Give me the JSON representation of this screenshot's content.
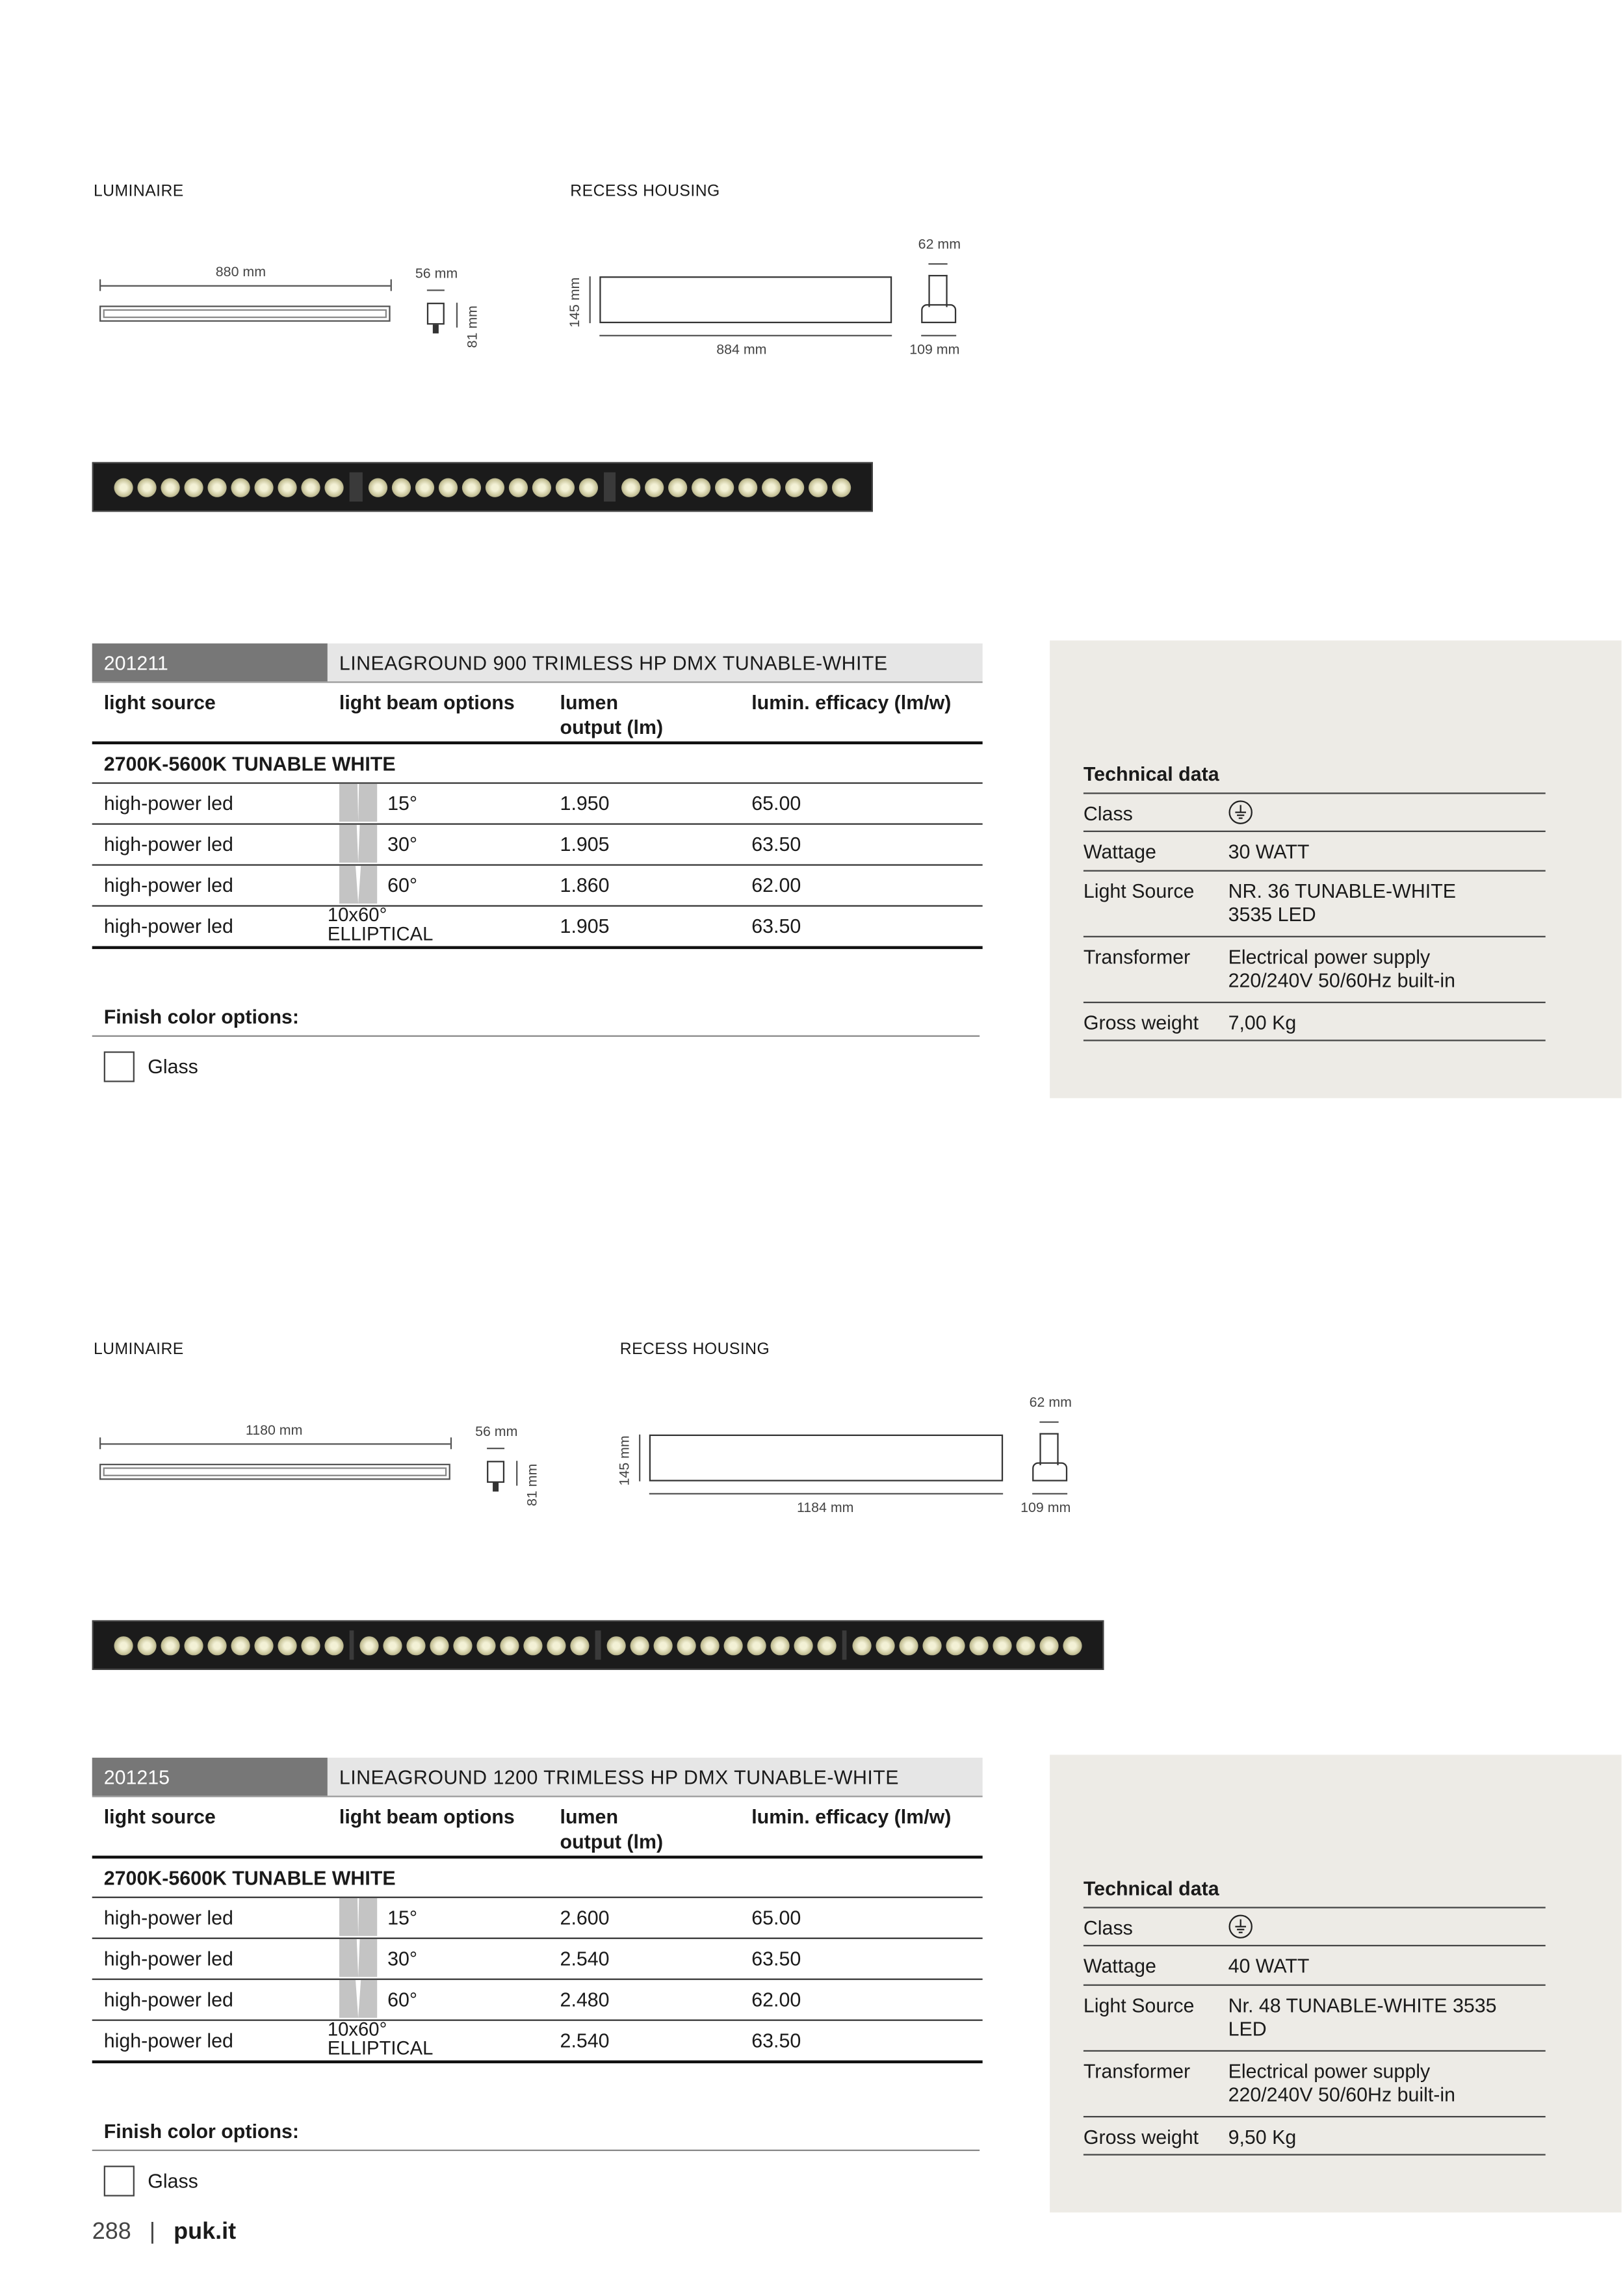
{
  "products": [
    {
      "drawings": {
        "luminaire_label": "LUMINAIRE",
        "recess_label": "RECESS HOUSING",
        "length": "880 mm",
        "width": "56 mm",
        "height": "81 mm",
        "recess_height": "145 mm",
        "recess_length": "884 mm",
        "recess_top": "62 mm",
        "recess_bottom": "109 mm"
      },
      "code": "201211",
      "title": "LINEAGROUND 900 TRIMLESS HP DMX TUNABLE-WHITE",
      "columns": [
        "light source",
        "light beam options",
        "lumen\noutput (lm)",
        "lumin. efficacy (lm/w)"
      ],
      "group": "2700K-5600K TUNABLE WHITE",
      "rows": [
        {
          "source": "high-power led",
          "beam": "15°",
          "lumen": "1.950",
          "efficacy": "65.00",
          "beam_icon": "beam-15"
        },
        {
          "source": "high-power led",
          "beam": "30°",
          "lumen": "1.905",
          "efficacy": "63.50",
          "beam_icon": "beam-30"
        },
        {
          "source": "high-power led",
          "beam": "60°",
          "lumen": "1.860",
          "efficacy": "62.00",
          "beam_icon": "beam-60"
        },
        {
          "source": "high-power led",
          "beam": "10x60°\nELLIPTICAL",
          "lumen": "1.905",
          "efficacy": "63.50"
        }
      ],
      "finish_label": "Finish color options:",
      "finish_options": [
        {
          "label": "Glass",
          "checked": false
        }
      ],
      "tech": {
        "heading": "Technical data",
        "items": [
          {
            "key": "Class",
            "value": "",
            "icon": "earth-ground-class-icon"
          },
          {
            "key": "Wattage",
            "value": "30 WATT"
          },
          {
            "key": "Light Source",
            "value": "NR. 36 TUNABLE-WHITE\n3535 LED"
          },
          {
            "key": "Transformer",
            "value": "Electrical power supply\n220/240V 50/60Hz built-in"
          },
          {
            "key": "Gross weight",
            "value": "7,00 Kg"
          }
        ]
      }
    },
    {
      "drawings": {
        "luminaire_label": "LUMINAIRE",
        "recess_label": "RECESS HOUSING",
        "length": "1180 mm",
        "width": "56 mm",
        "height": "81 mm",
        "recess_height": "145 mm",
        "recess_length": "1184 mm",
        "recess_top": "62 mm",
        "recess_bottom": "109 mm"
      },
      "code": "201215",
      "title": "LINEAGROUND 1200 TRIMLESS HP DMX TUNABLE-WHITE",
      "columns": [
        "light source",
        "light beam options",
        "lumen\noutput (lm)",
        "lumin. efficacy (lm/w)"
      ],
      "group": "2700K-5600K TUNABLE WHITE",
      "rows": [
        {
          "source": "high-power led",
          "beam": "15°",
          "lumen": "2.600",
          "efficacy": "65.00",
          "beam_icon": "beam-15"
        },
        {
          "source": "high-power led",
          "beam": "30°",
          "lumen": "2.540",
          "efficacy": "63.50",
          "beam_icon": "beam-30"
        },
        {
          "source": "high-power led",
          "beam": "60°",
          "lumen": "2.480",
          "efficacy": "62.00",
          "beam_icon": "beam-60"
        },
        {
          "source": "high-power led",
          "beam": "10x60°\nELLIPTICAL",
          "lumen": "2.540",
          "efficacy": "63.50"
        }
      ],
      "finish_label": "Finish color options:",
      "finish_options": [
        {
          "label": "Glass",
          "checked": false
        }
      ],
      "tech": {
        "heading": "Technical data",
        "items": [
          {
            "key": "Class",
            "value": "",
            "icon": "earth-ground-class-icon"
          },
          {
            "key": "Wattage",
            "value": "40 WATT"
          },
          {
            "key": "Light Source",
            "value": "Nr. 48 TUNABLE-WHITE 3535\nLED"
          },
          {
            "key": "Transformer",
            "value": "Electrical power supply\n220/240V 50/60Hz built-in"
          },
          {
            "key": "Gross weight",
            "value": "9,50 Kg"
          }
        ]
      }
    }
  ],
  "footer": {
    "page_number": "288",
    "separator": "|",
    "site": "puk.it"
  }
}
